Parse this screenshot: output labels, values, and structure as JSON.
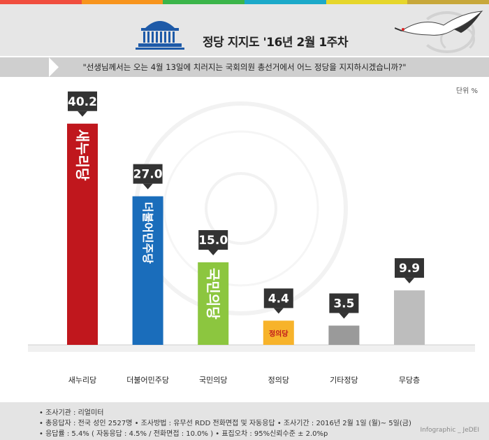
{
  "header": {
    "title": "정당 지지도 '16년 2월 1주차",
    "question": "\"선생님께서는 오는 4월 13일에 치러지는 국회의원 총선거에서 어느 정당을 지지하시겠습니까?\"",
    "stripe_colors": [
      "#f04e3e",
      "#f7941d",
      "#3bb54a",
      "#1ca9c9",
      "#e6d62b",
      "#c7a73a"
    ]
  },
  "chart_data": {
    "type": "bar",
    "unit_label": "단위 %",
    "categories": [
      "새누리당",
      "더불어민주당",
      "국민의당",
      "정의당",
      "기타정당",
      "무당층"
    ],
    "values": [
      40.2,
      27.0,
      15.0,
      4.4,
      3.5,
      9.9
    ],
    "value_labels": [
      "40.2",
      "27.0",
      "15.0",
      "4.4",
      "3.5",
      "9.9"
    ],
    "bar_colors": [
      "#c0171d",
      "#1a6dbb",
      "#8cc63f",
      "#f7b32b",
      "#9a9a9a",
      "#bdbdbd"
    ],
    "bar_logo_text": [
      "새누리당",
      "더불어민주당",
      "국민의당",
      "정의당",
      "",
      ""
    ],
    "ylim": [
      0,
      45
    ]
  },
  "footer": {
    "lines": [
      "• 조사기관 : 리얼미터",
      "• 총응답자 : 전국 성인 2527명  • 조사방법 : 유무선 RDD 전화면접 및 자동응답  • 조사기간 : 2016년 2월 1일 (월)~ 5일(금)",
      "• 응답률 : 5.4% ( 자동응답 : 4.5% / 전화면접 : 10.0% )  • 표집오차 : 95%신뢰수준 ± 2.0%p"
    ],
    "credit": "Infographic _ JeDEI"
  }
}
